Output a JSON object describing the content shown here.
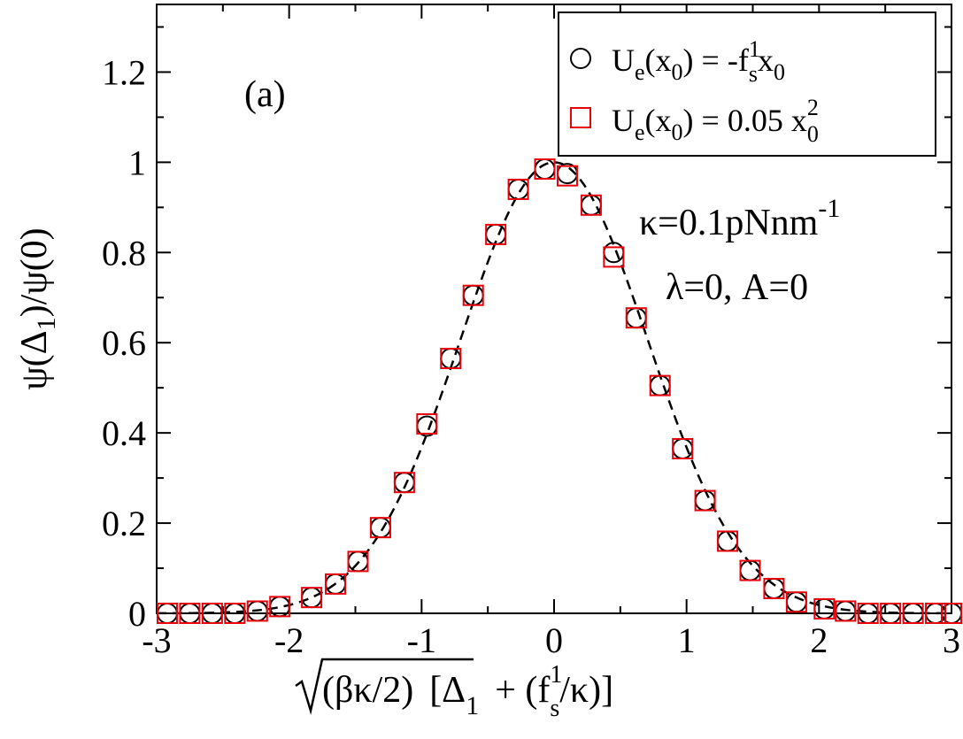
{
  "chart_data": {
    "type": "scatter",
    "title": "",
    "panel_label": "(a)",
    "xlabel": {
      "sqrt_part": "(βκ/2)",
      "bracket_open": "[Δ",
      "sub1": "1",
      "plus": "+ (f",
      "sup1": "1",
      "subs": "s",
      "end": "/κ)]"
    },
    "ylabel": {
      "pre": "ψ(Δ",
      "sub": "1",
      "post": ")/ψ(0)"
    },
    "xlim": [
      -3,
      3
    ],
    "ylim": [
      0,
      1.35
    ],
    "xticks": [
      -3,
      -2,
      -1,
      0,
      1,
      2,
      3
    ],
    "xtick_labels": [
      "-3",
      "-2",
      "-1",
      "0",
      "1",
      "2",
      "3"
    ],
    "yticks": [
      0,
      0.2,
      0.4,
      0.6,
      0.8,
      1.0,
      1.2
    ],
    "ytick_labels": [
      "0",
      "0.2",
      "0.4",
      "0.6",
      "0.8",
      "1",
      "1.2"
    ],
    "grid": false,
    "legend_position": "top-right",
    "annotations": {
      "line1_main": "κ=0.1pNnm",
      "line1_sup": "-1",
      "line2": "λ=0, A=0"
    },
    "legend": [
      {
        "marker": "circle",
        "color": "#000000",
        "pre": "U",
        "sub_e": "e",
        "mid1": "(x",
        "sub0": "0",
        "mid2": ") = -f",
        "sup": "1",
        "sub_s": "s",
        "mid3": "x",
        "sub0b": "0",
        "post": ""
      },
      {
        "marker": "square",
        "color": "#e8000b",
        "pre": "U",
        "sub_e": "e",
        "mid1": "(x",
        "sub0": "0",
        "mid2": ") = 0.05 x",
        "sup": "2",
        "sub_s": "",
        "mid3": "",
        "sub0b": "0",
        "post": ""
      }
    ],
    "series": [
      {
        "name": "U_e(x0) = -f_s^1 x0",
        "marker": "circle",
        "color": "#000000",
        "x": [
          -2.92,
          -2.75,
          -2.58,
          -2.41,
          -2.24,
          -2.07,
          -1.83,
          -1.65,
          -1.48,
          -1.31,
          -1.13,
          -0.96,
          -0.78,
          -0.61,
          -0.44,
          -0.27,
          -0.07,
          0.1,
          0.28,
          0.45,
          0.62,
          0.8,
          0.97,
          1.14,
          1.31,
          1.48,
          1.66,
          1.83,
          2.04,
          2.2,
          2.37,
          2.54,
          2.71,
          2.88,
          3.0
        ],
        "y": [
          0.0,
          0.0,
          0.0,
          0.0,
          0.005,
          0.015,
          0.035,
          0.065,
          0.115,
          0.19,
          0.29,
          0.415,
          0.565,
          0.705,
          0.84,
          0.94,
          0.985,
          0.975,
          0.905,
          0.8,
          0.655,
          0.505,
          0.365,
          0.25,
          0.16,
          0.095,
          0.055,
          0.025,
          0.01,
          0.005,
          0.0,
          0.0,
          0.0,
          0.0,
          0.0
        ]
      },
      {
        "name": "U_e(x0) = 0.05 x0^2",
        "marker": "square",
        "color": "#e8000b",
        "x": [
          -2.92,
          -2.75,
          -2.58,
          -2.41,
          -2.24,
          -2.07,
          -1.83,
          -1.65,
          -1.48,
          -1.31,
          -1.13,
          -0.96,
          -0.78,
          -0.61,
          -0.44,
          -0.27,
          -0.07,
          0.1,
          0.28,
          0.45,
          0.62,
          0.8,
          0.97,
          1.14,
          1.31,
          1.48,
          1.66,
          1.83,
          2.04,
          2.2,
          2.37,
          2.54,
          2.71,
          2.88,
          3.0
        ],
        "y": [
          0.0,
          0.0,
          0.0,
          0.0,
          0.005,
          0.015,
          0.035,
          0.065,
          0.115,
          0.19,
          0.29,
          0.42,
          0.565,
          0.705,
          0.84,
          0.94,
          0.985,
          0.97,
          0.905,
          0.79,
          0.655,
          0.505,
          0.365,
          0.25,
          0.16,
          0.095,
          0.055,
          0.025,
          0.01,
          0.005,
          0.0,
          0.0,
          0.0,
          0.0,
          0.0
        ]
      },
      {
        "name": "gaussian-fit",
        "style": "dashed",
        "color": "#000000",
        "function": "exp(-x^2)"
      }
    ]
  }
}
